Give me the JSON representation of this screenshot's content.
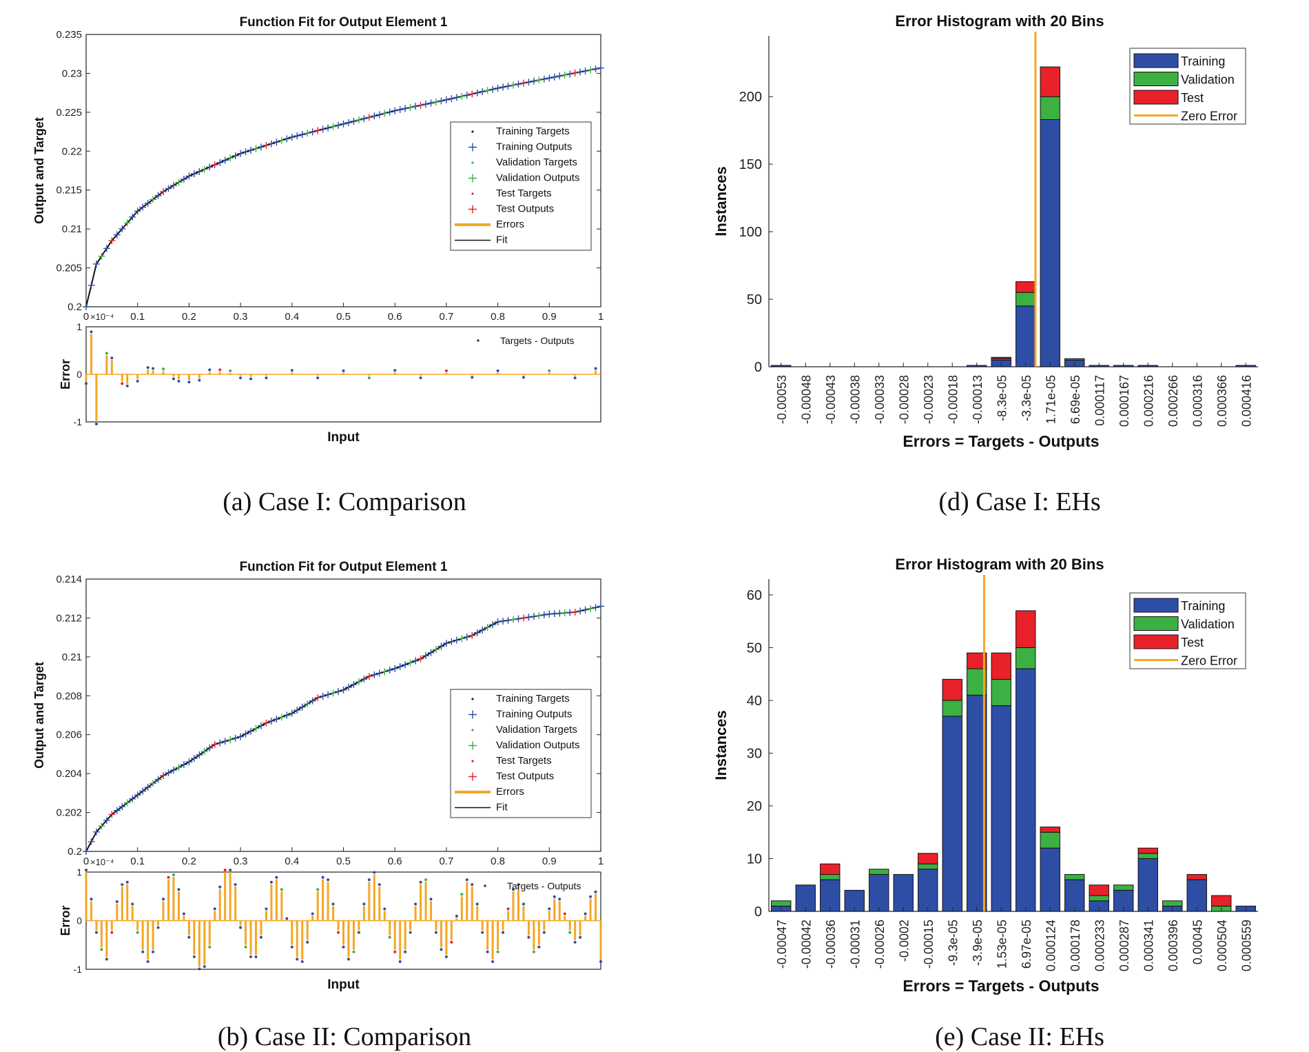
{
  "colors": {
    "training": "#2e4ea6",
    "validation": "#3cb043",
    "test": "#e8212a",
    "zero_error": "#f5a623",
    "fit": "#111111",
    "errors_line": "#f5a623",
    "target_dot": "#1a1a6e"
  },
  "captions": {
    "a": "(a) Case I: Comparison",
    "b": "(b) Case II: Comparison",
    "d": "(d) Case I: EHs",
    "e": "(e) Case II: EHs"
  },
  "legend_fit": {
    "training_targets": "Training Targets",
    "training_outputs": "Training Outputs",
    "validation_targets": "Validation Targets",
    "validation_outputs": "Validation Outputs",
    "test_targets": "Test Targets",
    "test_outputs": "Test Outputs",
    "errors": "Errors",
    "fit": "Fit",
    "targets_outputs": "Targets - Outputs"
  },
  "legend_hist": {
    "training": "Training",
    "validation": "Validation",
    "test": "Test",
    "zero_error": "Zero Error"
  },
  "chart_data": [
    {
      "id": "a",
      "type": "line",
      "title": "Function Fit for Output Element 1",
      "xlabel": "Input",
      "ylabel": "Output and Target",
      "xlim": [
        0,
        1
      ],
      "ylim": [
        0.2,
        0.235
      ],
      "xticks": [
        "0",
        "0.1",
        "0.2",
        "0.3",
        "0.4",
        "0.5",
        "0.6",
        "0.7",
        "0.8",
        "0.9",
        "1"
      ],
      "yticks": [
        "0.2",
        "0.205",
        "0.21",
        "0.215",
        "0.22",
        "0.225",
        "0.23",
        "0.235"
      ],
      "fit": {
        "x": [
          0,
          0.02,
          0.05,
          0.1,
          0.15,
          0.2,
          0.3,
          0.4,
          0.5,
          0.6,
          0.7,
          0.8,
          0.9,
          1.0
        ],
        "y": [
          0.2,
          0.2055,
          0.2085,
          0.2123,
          0.2148,
          0.2168,
          0.2197,
          0.2218,
          0.2235,
          0.2252,
          0.2266,
          0.2281,
          0.2294,
          0.2307
        ]
      },
      "error": {
        "ylabel": "Error",
        "scale_label": "×10⁻⁴",
        "ylim": [
          -1,
          1
        ],
        "yticks": [
          "-1",
          "0",
          "1"
        ],
        "x": [
          0.0,
          0.01,
          0.02,
          0.04,
          0.05,
          0.07,
          0.08,
          0.1,
          0.12,
          0.13,
          0.15,
          0.17,
          0.18,
          0.2,
          0.22,
          0.24,
          0.26,
          0.28,
          0.3,
          0.32,
          0.35,
          0.4,
          0.45,
          0.5,
          0.55,
          0.6,
          0.65,
          0.7,
          0.75,
          0.8,
          0.85,
          0.9,
          0.95,
          0.99
        ],
        "values": [
          -0.15,
          0.85,
          -1.0,
          0.4,
          0.3,
          -0.15,
          -0.2,
          -0.1,
          0.1,
          0.08,
          0.07,
          -0.05,
          -0.1,
          -0.12,
          -0.08,
          0.05,
          0.05,
          0.03,
          -0.03,
          -0.05,
          -0.03,
          0.04,
          -0.03,
          0.03,
          -0.03,
          0.04,
          -0.03,
          0.03,
          -0.02,
          0.03,
          -0.02,
          0.03,
          -0.03,
          0.08
        ]
      }
    },
    {
      "id": "b",
      "type": "line",
      "title": "Function Fit for Output Element 1",
      "xlabel": "Input",
      "ylabel": "Output and Target",
      "xlim": [
        0,
        1
      ],
      "ylim": [
        0.2,
        0.214
      ],
      "xticks": [
        "0",
        "0.1",
        "0.2",
        "0.3",
        "0.4",
        "0.5",
        "0.6",
        "0.7",
        "0.8",
        "0.9",
        "1"
      ],
      "yticks": [
        "0.2",
        "0.202",
        "0.204",
        "0.206",
        "0.208",
        "0.21",
        "0.212",
        "0.214"
      ],
      "fit": {
        "x": [
          0,
          0.02,
          0.05,
          0.1,
          0.15,
          0.2,
          0.25,
          0.3,
          0.35,
          0.4,
          0.45,
          0.5,
          0.55,
          0.6,
          0.65,
          0.7,
          0.75,
          0.8,
          0.85,
          0.9,
          0.95,
          1.0
        ],
        "y": [
          0.2,
          0.201,
          0.2019,
          0.2029,
          0.2039,
          0.2046,
          0.2055,
          0.2059,
          0.2066,
          0.2071,
          0.2079,
          0.2083,
          0.209,
          0.2094,
          0.2099,
          0.2107,
          0.2111,
          0.2118,
          0.212,
          0.2122,
          0.2123,
          0.2126
        ]
      },
      "error": {
        "ylabel": "Error",
        "scale_label": "×10⁻⁴",
        "ylim": [
          -1,
          1
        ],
        "yticks": [
          "-1",
          "0",
          "1"
        ],
        "x": [
          0.0,
          0.01,
          0.02,
          0.03,
          0.04,
          0.05,
          0.06,
          0.07,
          0.08,
          0.09,
          0.1,
          0.11,
          0.12,
          0.13,
          0.14,
          0.15,
          0.16,
          0.17,
          0.18,
          0.19,
          0.2,
          0.21,
          0.22,
          0.23,
          0.24,
          0.25,
          0.26,
          0.27,
          0.28,
          0.29,
          0.3,
          0.31,
          0.32,
          0.33,
          0.34,
          0.35,
          0.36,
          0.37,
          0.38,
          0.39,
          0.4,
          0.41,
          0.42,
          0.43,
          0.44,
          0.45,
          0.46,
          0.47,
          0.48,
          0.49,
          0.5,
          0.51,
          0.52,
          0.53,
          0.54,
          0.55,
          0.56,
          0.57,
          0.58,
          0.59,
          0.6,
          0.61,
          0.62,
          0.63,
          0.64,
          0.65,
          0.66,
          0.67,
          0.68,
          0.69,
          0.7,
          0.71,
          0.72,
          0.73,
          0.74,
          0.75,
          0.76,
          0.77,
          0.78,
          0.79,
          0.8,
          0.81,
          0.82,
          0.83,
          0.84,
          0.85,
          0.86,
          0.87,
          0.88,
          0.89,
          0.9,
          0.91,
          0.92,
          0.93,
          0.94,
          0.95,
          0.96,
          0.97,
          0.98,
          0.99,
          1.0
        ],
        "values": [
          1.0,
          0.4,
          -0.2,
          -0.55,
          -0.75,
          -0.2,
          0.35,
          0.7,
          0.75,
          0.3,
          -0.2,
          -0.6,
          -0.8,
          -0.6,
          -0.1,
          0.4,
          0.85,
          0.9,
          0.6,
          0.1,
          -0.3,
          -0.7,
          -0.95,
          -0.9,
          -0.5,
          0.2,
          0.65,
          1.0,
          1.0,
          0.7,
          -0.1,
          -0.5,
          -0.7,
          -0.7,
          -0.3,
          0.2,
          0.75,
          0.85,
          0.6,
          0.0,
          -0.5,
          -0.75,
          -0.8,
          -0.4,
          0.1,
          0.6,
          0.85,
          0.8,
          0.3,
          -0.2,
          -0.5,
          -0.75,
          -0.6,
          -0.2,
          0.3,
          0.8,
          0.95,
          0.7,
          0.2,
          -0.3,
          -0.6,
          -0.8,
          -0.6,
          -0.2,
          0.3,
          0.75,
          0.8,
          0.4,
          -0.2,
          -0.55,
          -0.7,
          -0.4,
          0.05,
          0.5,
          0.8,
          0.7,
          0.3,
          -0.2,
          -0.6,
          -0.8,
          -0.6,
          -0.2,
          0.2,
          0.6,
          0.7,
          0.3,
          -0.3,
          -0.6,
          -0.5,
          -0.2,
          0.2,
          0.45,
          0.4,
          0.1,
          -0.2,
          -0.4,
          -0.3,
          0.1,
          0.45,
          0.55,
          -0.8
        ]
      }
    },
    {
      "id": "d",
      "type": "bar",
      "title": "Error Histogram with 20 Bins",
      "xlabel": "Errors = Targets - Outputs",
      "ylabel": "Instances",
      "ylim": [
        0,
        245
      ],
      "yticks": [
        0,
        50,
        100,
        150,
        200
      ],
      "zero_error_bin": 10.9,
      "categories": [
        "-0.00053",
        "-0.00048",
        "-0.00043",
        "-0.00038",
        "-0.00033",
        "-0.00028",
        "-0.00023",
        "-0.00018",
        "-0.00013",
        "-8.3e-05",
        "-3.3e-05",
        "1.71e-05",
        "6.69e-05",
        "0.000117",
        "0.000167",
        "0.000216",
        "0.000266",
        "0.000316",
        "0.000366",
        "0.000416"
      ],
      "series": [
        {
          "name": "Training",
          "values": [
            1,
            0,
            0,
            0,
            0,
            0,
            0,
            0,
            1,
            5,
            45,
            183,
            5,
            1,
            1,
            1,
            0,
            0,
            0,
            1
          ]
        },
        {
          "name": "Validation",
          "values": [
            0,
            0,
            0,
            0,
            0,
            0,
            0,
            0,
            0,
            1,
            10,
            17,
            1,
            0,
            0,
            0,
            0,
            0,
            0,
            0
          ]
        },
        {
          "name": "Test",
          "values": [
            0,
            0,
            0,
            0,
            0,
            0,
            0,
            0,
            0,
            1,
            8,
            22,
            0,
            0,
            0,
            0,
            0,
            0,
            0,
            0
          ]
        }
      ]
    },
    {
      "id": "e",
      "type": "bar",
      "title": "Error Histogram with 20 Bins",
      "xlabel": "Errors = Targets - Outputs",
      "ylabel": "Instances",
      "ylim": [
        0,
        63
      ],
      "yticks": [
        0,
        10,
        20,
        30,
        40,
        50,
        60
      ],
      "zero_error_bin": 8.8,
      "categories": [
        "-0.00047",
        "-0.00042",
        "-0.00036",
        "-0.00031",
        "-0.00026",
        "-0.0002",
        "-0.00015",
        "-9.3e-05",
        "-3.9e-05",
        "1.53e-05",
        "6.97e-05",
        "0.000124",
        "0.000178",
        "0.000233",
        "0.000287",
        "0.000341",
        "0.000396",
        "0.00045",
        "0.000504",
        "0.000559"
      ],
      "series": [
        {
          "name": "Training",
          "values": [
            1,
            5,
            6,
            4,
            7,
            7,
            8,
            37,
            41,
            39,
            46,
            12,
            6,
            2,
            4,
            10,
            1,
            6,
            0,
            1
          ]
        },
        {
          "name": "Validation",
          "values": [
            1,
            0,
            1,
            0,
            1,
            0,
            1,
            3,
            5,
            5,
            4,
            3,
            1,
            1,
            1,
            1,
            1,
            0,
            1,
            0
          ]
        },
        {
          "name": "Test",
          "values": [
            0,
            0,
            2,
            0,
            0,
            0,
            2,
            4,
            3,
            5,
            7,
            1,
            0,
            2,
            0,
            1,
            0,
            1,
            2,
            0
          ]
        }
      ]
    }
  ]
}
